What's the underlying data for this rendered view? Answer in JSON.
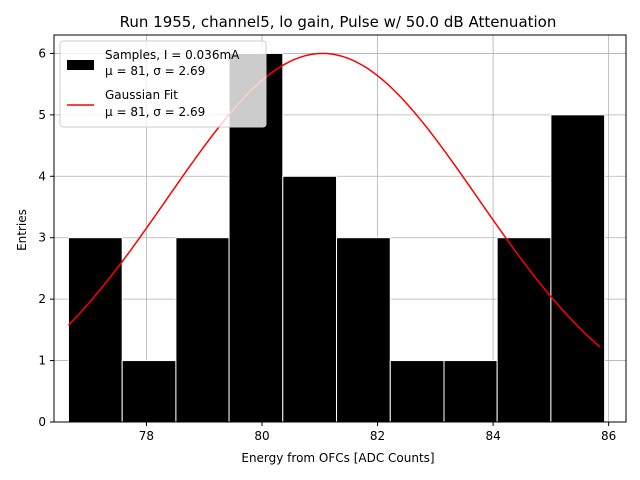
{
  "chart_data": {
    "type": "bar",
    "title": "Run 1955, channel5, lo gain, Pulse w/ 50.0 dB Attenuation",
    "xlabel": "Energy from OFCs [ADC Counts]",
    "ylabel": "Entries",
    "xlim": [
      76.4,
      86.3
    ],
    "ylim": [
      0,
      6.3
    ],
    "xticks": [
      78,
      80,
      82,
      84,
      86
    ],
    "yticks": [
      0,
      1,
      2,
      3,
      4,
      5,
      6
    ],
    "grid": true,
    "bin_edges": [
      76.65,
      77.58,
      78.51,
      79.43,
      80.36,
      81.29,
      82.22,
      83.15,
      84.07,
      85.0,
      85.93
    ],
    "counts": [
      3,
      1,
      3,
      6,
      4,
      3,
      1,
      1,
      3,
      5
    ],
    "fit": {
      "name": "Gaussian Fit",
      "mu": 81.05,
      "sigma": 2.69,
      "amplitude": 6.0,
      "x_range": [
        76.65,
        85.85
      ]
    },
    "legend_position": "upper-left",
    "legend": {
      "hist_line1": "Samples, I = 0.036mA",
      "hist_line2": "μ = 81, σ = 2.69",
      "fit_line1": "Gaussian Fit",
      "fit_line2": "μ = 81, σ = 2.69"
    },
    "colors": {
      "bars": "#000000",
      "bar_edges": "#ffffff",
      "fit": "#ff0000",
      "grid": "#b0b0b0"
    }
  }
}
